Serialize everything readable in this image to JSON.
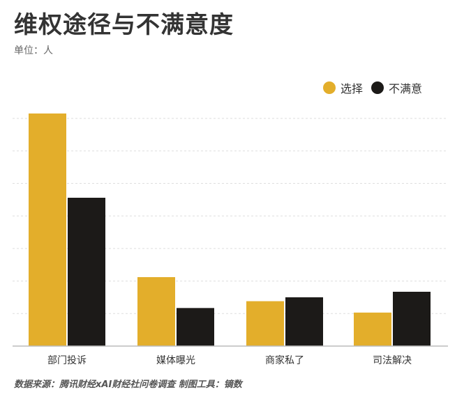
{
  "title": "维权途径与不满意度",
  "unit": "单位：人",
  "legend": [
    {
      "label": "选择",
      "color": "#E3AE2B"
    },
    {
      "label": "不满意",
      "color": "#1C1A18"
    }
  ],
  "source": "数据来源：腾讯财经xAI财经社问卷调查  制图工具：镝数",
  "chart_data": {
    "type": "bar",
    "title": "维权途径与不满意度",
    "categories": [
      "部门投诉",
      "媒体曝光",
      "商家私了",
      "司法解决"
    ],
    "series": [
      {
        "name": "选择",
        "color": "#E3AE2B",
        "values": [
          71.5,
          21.2,
          13.8,
          10.3
        ]
      },
      {
        "name": "不满意",
        "color": "#1C1A18",
        "values": [
          45.6,
          11.7,
          15.0,
          16.7
        ]
      }
    ],
    "ylim": [
      0,
      70
    ],
    "y_gridlines": [
      10,
      20,
      30,
      40,
      50,
      60,
      70
    ],
    "grid": true,
    "y_tick_labels_shown": false,
    "legend_position": "top-right"
  }
}
